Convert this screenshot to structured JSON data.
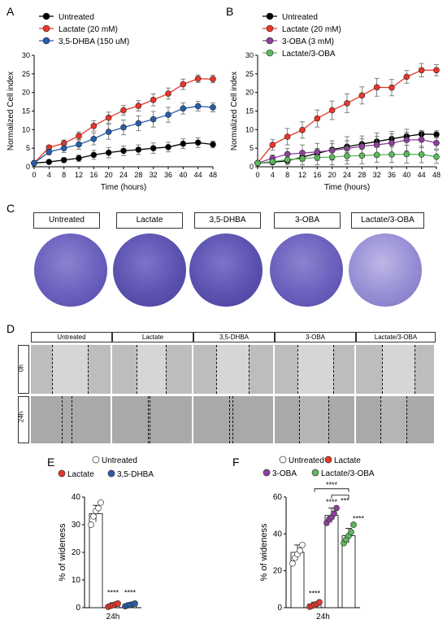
{
  "panels": {
    "a": "A",
    "b": "B",
    "c": "C",
    "d": "D",
    "e": "E",
    "f": "F"
  },
  "panelA": {
    "legend": [
      "Untreated",
      "Lactate (20 mM)",
      "3,5-DHBA (150 uM)"
    ],
    "ylabel": "Normalized Cell index",
    "xlabel": "Time (hours)"
  },
  "panelB": {
    "legend": [
      "Untreated",
      "Lactate (20 mM)",
      "3-OBA (3 mM)",
      "Lactate/3-OBA"
    ],
    "ylabel": "Normalized Cell index",
    "xlabel": "Time (hours)"
  },
  "panelC": {
    "labels": [
      "Untreated",
      "Lactate",
      "3,5-DHBA",
      "3-OBA",
      "Lactate/3-OBA"
    ]
  },
  "panelD": {
    "labels": [
      "Untreated",
      "Lactate",
      "3,5-DHBA",
      "3-OBA",
      "Lactate/3-OBA"
    ],
    "rows": [
      "0h",
      "24h"
    ]
  },
  "panelE": {
    "legend": [
      "Untreated",
      "Lactate",
      "3,5-DHBA"
    ],
    "ylabel": "% of wideness",
    "xlabel": "24h"
  },
  "panelF": {
    "legend": [
      "Untreated",
      "Lactate",
      "3-OBA",
      "Lactate/3-OBA"
    ],
    "ylabel": "% of wideness",
    "xlabel": "24h"
  },
  "colors": {
    "untreated": "#000000",
    "lactate": "#e8362a",
    "dhba": "#2a5caa",
    "oba": "#8e3f9f",
    "combo": "#5cb85c"
  },
  "chart_data": [
    {
      "type": "line",
      "x": [
        0,
        4,
        8,
        12,
        16,
        20,
        24,
        28,
        32,
        36,
        40,
        44,
        48
      ],
      "xlabel": "Time (hours)",
      "ylabel": "Normalized Cell index",
      "xlim": [
        0,
        48
      ],
      "ylim": [
        0,
        30
      ],
      "xticks": [
        0,
        4,
        8,
        12,
        16,
        20,
        24,
        28,
        32,
        36,
        40,
        44,
        48
      ],
      "yticks": [
        0,
        5,
        10,
        15,
        20,
        25,
        30
      ],
      "series": [
        {
          "name": "Untreated",
          "color": "#000000",
          "values": [
            1,
            1.3,
            1.8,
            2.3,
            3.2,
            3.8,
            4.3,
            4.6,
            5,
            5.3,
            6.2,
            6.5,
            6.0
          ],
          "err": [
            0.2,
            0.4,
            0.6,
            0.9,
            1.2,
            1.4,
            1.3,
            1.3,
            1.4,
            1.3,
            1.3,
            1.3,
            0.9
          ]
        },
        {
          "name": "Lactate (20 mM)",
          "color": "#e8362a",
          "values": [
            1,
            5.2,
            6.3,
            8.3,
            11.0,
            13.2,
            15.2,
            16.4,
            18.0,
            19.7,
            22.2,
            23.7,
            23.6
          ],
          "err": [
            0.2,
            0.6,
            0.9,
            1.1,
            1.4,
            1.5,
            1.3,
            1.4,
            1.6,
            1.5,
            1.4,
            1.0,
            1.0
          ]
        },
        {
          "name": "3,5-DHBA (150 uM)",
          "color": "#2a5caa",
          "values": [
            1,
            4.0,
            5.0,
            6.0,
            7.5,
            9.4,
            10.6,
            11.7,
            12.8,
            14.0,
            15.7,
            16.3,
            16.0
          ],
          "err": [
            0.2,
            0.8,
            1.2,
            1.3,
            1.6,
            2.0,
            2.0,
            2.0,
            2.1,
            2.0,
            1.5,
            1.3,
            1.2
          ]
        }
      ]
    },
    {
      "type": "line",
      "x": [
        0,
        4,
        8,
        12,
        16,
        20,
        24,
        28,
        32,
        36,
        40,
        44,
        48
      ],
      "xlabel": "Time (hours)",
      "ylabel": "Normalized Cell index",
      "xlim": [
        0,
        48
      ],
      "ylim": [
        0,
        30
      ],
      "xticks": [
        0,
        4,
        8,
        12,
        16,
        20,
        24,
        28,
        32,
        36,
        40,
        44,
        48
      ],
      "yticks": [
        0,
        5,
        10,
        15,
        20,
        25,
        30
      ],
      "series": [
        {
          "name": "Untreated",
          "color": "#000000",
          "values": [
            1,
            1.2,
            1.6,
            2.6,
            3.6,
            4.6,
            5.4,
            6.1,
            6.8,
            7.5,
            8.2,
            8.8,
            8.7
          ],
          "err": [
            0.2,
            0.4,
            0.7,
            1.0,
            1.3,
            1.6,
            1.6,
            1.4,
            1.4,
            1.3,
            1.1,
            1.0,
            1.0
          ]
        },
        {
          "name": "Lactate (20 mM)",
          "color": "#e8362a",
          "values": [
            1,
            5.9,
            8.1,
            9.9,
            13.0,
            15.2,
            17.1,
            19.2,
            21.4,
            21.3,
            24.2,
            26.0,
            26.0
          ],
          "err": [
            0.2,
            1.4,
            2.2,
            2.2,
            2.3,
            2.5,
            2.5,
            2.3,
            2.4,
            2.2,
            1.7,
            1.8,
            1.5
          ]
        },
        {
          "name": "3-OBA (3 mM)",
          "color": "#8e3f9f",
          "values": [
            1,
            2.3,
            3.4,
            3.7,
            4.0,
            4.4,
            4.9,
            5.5,
            5.9,
            6.4,
            7.2,
            7.3,
            6.4
          ],
          "err": [
            0.2,
            0.9,
            1.5,
            2.2,
            2.3,
            2.6,
            3.2,
            2.8,
            3.2,
            3.1,
            2.9,
            2.2,
            1.6
          ]
        },
        {
          "name": "Lactate/3-OBA",
          "color": "#5cb85c",
          "values": [
            1,
            1.4,
            1.9,
            2.2,
            2.5,
            2.6,
            2.9,
            3.0,
            3.2,
            3.3,
            3.4,
            3.3,
            2.7
          ],
          "err": [
            0.2,
            0.6,
            1.4,
            1.7,
            2.0,
            2.1,
            2.2,
            2.2,
            2.0,
            2.1,
            2.4,
            2.2,
            1.8
          ]
        }
      ]
    },
    {
      "type": "bar",
      "categories": [
        "Untreated",
        "Lactate",
        "3,5-DHBA"
      ],
      "values": [
        34,
        1,
        1
      ],
      "err": [
        3,
        0.8,
        0.5
      ],
      "points": [
        [
          30,
          33,
          35,
          36,
          38
        ],
        [
          0.3,
          0.6,
          0.9,
          1.2,
          1.5
        ],
        [
          0.5,
          0.8,
          1.0,
          1.2,
          1.5
        ]
      ],
      "ylabel": "% of wideness",
      "xlabel": "24h",
      "ylim": [
        0,
        40
      ],
      "yticks": [
        0,
        10,
        20,
        30,
        40
      ],
      "annotations": [
        "****",
        "****"
      ]
    },
    {
      "type": "bar",
      "categories": [
        "Untreated",
        "Lactate",
        "3-OBA",
        "Lactate/3-OBA"
      ],
      "values": [
        30,
        2,
        50,
        39
      ],
      "err": [
        4,
        1,
        4,
        4
      ],
      "points": [
        [
          24,
          27,
          29,
          31,
          34
        ],
        [
          0.5,
          1,
          1.5,
          2,
          3
        ],
        [
          46,
          48,
          49,
          51,
          54
        ],
        [
          35,
          37,
          39,
          41,
          45
        ]
      ],
      "ylabel": "% of wideness",
      "xlabel": "24h",
      "ylim": [
        0,
        60
      ],
      "yticks": [
        0,
        20,
        40,
        60
      ],
      "annotations": [
        "****",
        "****",
        "****",
        "****",
        "***"
      ]
    }
  ]
}
